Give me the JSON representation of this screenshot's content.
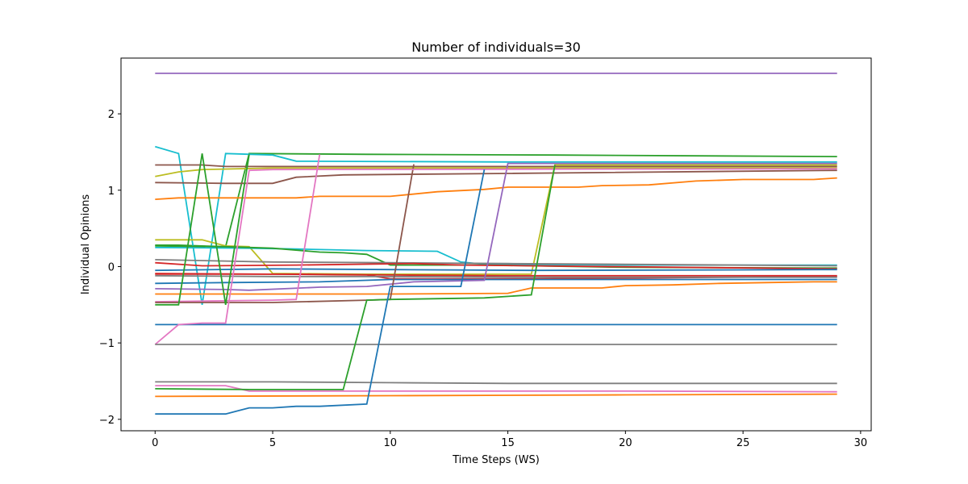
{
  "chart_data": {
    "type": "line",
    "title": "Number of individuals=30",
    "xlabel": "Time Steps (WS)",
    "ylabel": "Individual Opinions",
    "xlim": [
      -1.45,
      30.45
    ],
    "ylim": [
      -2.15,
      2.73
    ],
    "xticks": [
      0,
      5,
      10,
      15,
      20,
      25,
      30
    ],
    "yticks": [
      -2,
      -1,
      0,
      1,
      2
    ],
    "xtick_labels": [
      "0",
      "5",
      "10",
      "15",
      "20",
      "25",
      "30"
    ],
    "ytick_labels": [
      "−2",
      "−1",
      "0",
      "1",
      "2"
    ],
    "grid": false,
    "series": [
      {
        "color": "#9467bd",
        "points": [
          [
            0,
            2.53
          ],
          [
            29,
            2.53
          ]
        ]
      },
      {
        "color": "#2ca02c",
        "points": [
          [
            0,
            0.28
          ],
          [
            1,
            0.28
          ],
          [
            2,
            0.27
          ],
          [
            3,
            0.26
          ],
          [
            4,
            1.48
          ],
          [
            9,
            1.47
          ],
          [
            17,
            1.46
          ],
          [
            29,
            1.44
          ]
        ]
      },
      {
        "color": "#17becf",
        "points": [
          [
            0,
            1.57
          ],
          [
            1,
            1.48
          ],
          [
            2,
            -0.5
          ],
          [
            3,
            1.48
          ],
          [
            5,
            1.46
          ],
          [
            6,
            1.38
          ],
          [
            15,
            1.37
          ],
          [
            29,
            1.37
          ]
        ]
      },
      {
        "color": "#8c564b",
        "points": [
          [
            0,
            1.33
          ],
          [
            2,
            1.33
          ],
          [
            3,
            1.31
          ],
          [
            15,
            1.31
          ],
          [
            29,
            1.31
          ]
        ]
      },
      {
        "color": "#bcbd22",
        "points": [
          [
            0,
            1.18
          ],
          [
            1,
            1.24
          ],
          [
            2,
            1.27
          ],
          [
            5,
            1.29
          ],
          [
            29,
            1.29
          ]
        ]
      },
      {
        "color": "#8c564b",
        "points": [
          [
            0,
            1.1
          ],
          [
            3,
            1.09
          ],
          [
            5,
            1.09
          ],
          [
            6,
            1.17
          ],
          [
            8,
            1.2
          ],
          [
            15,
            1.22
          ],
          [
            29,
            1.26
          ]
        ]
      },
      {
        "color": "#ff7f0e",
        "points": [
          [
            0,
            0.88
          ],
          [
            1,
            0.9
          ],
          [
            6,
            0.9
          ],
          [
            7,
            0.92
          ],
          [
            10,
            0.92
          ],
          [
            12,
            0.98
          ],
          [
            14,
            1.01
          ],
          [
            15,
            1.04
          ],
          [
            18,
            1.04
          ],
          [
            19,
            1.06
          ],
          [
            21,
            1.07
          ],
          [
            23,
            1.12
          ],
          [
            25,
            1.14
          ],
          [
            28,
            1.14
          ],
          [
            29,
            1.16
          ]
        ]
      },
      {
        "color": "#bcbd22",
        "points": [
          [
            0,
            0.35
          ],
          [
            2,
            0.35
          ],
          [
            3,
            0.27
          ],
          [
            4,
            0.26
          ],
          [
            5,
            -0.09
          ],
          [
            9,
            -0.1
          ],
          [
            16,
            -0.1
          ],
          [
            17,
            1.33
          ],
          [
            29,
            1.33
          ]
        ]
      },
      {
        "color": "#17becf",
        "points": [
          [
            0,
            0.25
          ],
          [
            4,
            0.24
          ],
          [
            6,
            0.23
          ],
          [
            9,
            0.21
          ],
          [
            12,
            0.2
          ],
          [
            13,
            0.06
          ],
          [
            14,
            0.03
          ],
          [
            20,
            0.02
          ],
          [
            29,
            0.02
          ]
        ]
      },
      {
        "color": "#2ca02c",
        "points": [
          [
            0,
            0.27
          ],
          [
            3,
            0.26
          ],
          [
            5,
            0.24
          ],
          [
            7,
            0.19
          ],
          [
            8,
            0.18
          ],
          [
            9,
            0.16
          ],
          [
            10,
            0.02
          ],
          [
            14,
            0.02
          ],
          [
            20,
            -0.01
          ],
          [
            29,
            -0.02
          ]
        ]
      },
      {
        "color": "#7f7f7f",
        "points": [
          [
            0,
            0.09
          ],
          [
            5,
            0.06
          ],
          [
            10,
            0.05
          ],
          [
            15,
            0.04
          ],
          [
            20,
            0.03
          ],
          [
            29,
            0.01
          ]
        ]
      },
      {
        "color": "#d62728",
        "points": [
          [
            0,
            0.05
          ],
          [
            2,
            0.01
          ],
          [
            6,
            0.02
          ],
          [
            11,
            0.04
          ],
          [
            13,
            0.02
          ],
          [
            16,
            0.01
          ],
          [
            29,
            -0.03
          ]
        ]
      },
      {
        "color": "#1f77b4",
        "points": [
          [
            0,
            -0.05
          ],
          [
            5,
            -0.03
          ],
          [
            10,
            -0.04
          ],
          [
            16,
            -0.05
          ],
          [
            29,
            -0.04
          ]
        ]
      },
      {
        "color": "#d62728",
        "points": [
          [
            0,
            -0.09
          ],
          [
            5,
            -0.1
          ],
          [
            9,
            -0.11
          ],
          [
            10,
            -0.16
          ],
          [
            16,
            -0.16
          ],
          [
            29,
            -0.13
          ]
        ]
      },
      {
        "color": "#d62728",
        "points": [
          [
            0,
            -0.1
          ],
          [
            6,
            -0.1
          ],
          [
            10,
            -0.11
          ],
          [
            15,
            -0.12
          ],
          [
            29,
            -0.12
          ]
        ]
      },
      {
        "color": "#7f7f7f",
        "points": [
          [
            0,
            -0.12
          ],
          [
            5,
            -0.13
          ],
          [
            10,
            -0.13
          ],
          [
            16,
            -0.14
          ],
          [
            29,
            -0.14
          ]
        ]
      },
      {
        "color": "#1f77b4",
        "points": [
          [
            0,
            -0.22
          ],
          [
            3,
            -0.21
          ],
          [
            7,
            -0.2
          ],
          [
            10,
            -0.17
          ],
          [
            15,
            -0.17
          ],
          [
            29,
            -0.17
          ]
        ]
      },
      {
        "color": "#9467bd",
        "points": [
          [
            0,
            -0.29
          ],
          [
            3,
            -0.3
          ],
          [
            4,
            -0.31
          ],
          [
            7,
            -0.27
          ],
          [
            9,
            -0.26
          ],
          [
            11,
            -0.2
          ],
          [
            14,
            -0.18
          ],
          [
            15,
            1.35
          ],
          [
            29,
            1.35
          ]
        ]
      },
      {
        "color": "#ff7f0e",
        "points": [
          [
            0,
            -0.36
          ],
          [
            5,
            -0.36
          ],
          [
            10,
            -0.36
          ],
          [
            15,
            -0.35
          ],
          [
            16,
            -0.28
          ],
          [
            19,
            -0.28
          ],
          [
            20,
            -0.25
          ],
          [
            22,
            -0.24
          ],
          [
            24,
            -0.22
          ],
          [
            26,
            -0.21
          ],
          [
            28,
            -0.2
          ],
          [
            29,
            -0.2
          ]
        ]
      },
      {
        "color": "#e377c2",
        "points": [
          [
            0,
            -0.46
          ],
          [
            5,
            -0.44
          ],
          [
            6,
            -0.43
          ],
          [
            7,
            1.47
          ]
        ]
      },
      {
        "color": "#8c564b",
        "points": [
          [
            0,
            -0.47
          ],
          [
            5,
            -0.47
          ],
          [
            9,
            -0.44
          ],
          [
            10,
            -0.43
          ],
          [
            11,
            1.34
          ]
        ]
      },
      {
        "color": "#2ca02c",
        "points": [
          [
            0,
            -0.5
          ],
          [
            1,
            -0.5
          ],
          [
            2,
            1.48
          ],
          [
            3,
            -0.5
          ],
          [
            4,
            1.47
          ]
        ]
      },
      {
        "color": "#1f77b4",
        "points": [
          [
            0,
            -0.76
          ],
          [
            29,
            -0.76
          ]
        ]
      },
      {
        "color": "#e377c2",
        "points": [
          [
            0,
            -1.02
          ],
          [
            1,
            -0.76
          ],
          [
            2,
            -0.74
          ],
          [
            3,
            -0.74
          ],
          [
            4,
            1.26
          ],
          [
            5,
            1.27
          ],
          [
            29,
            1.28
          ]
        ]
      },
      {
        "color": "#7f7f7f",
        "points": [
          [
            0,
            -1.02
          ],
          [
            29,
            -1.02
          ]
        ]
      },
      {
        "color": "#7f7f7f",
        "points": [
          [
            0,
            -1.51
          ],
          [
            5,
            -1.51
          ],
          [
            10,
            -1.52
          ],
          [
            15,
            -1.53
          ],
          [
            29,
            -1.53
          ]
        ]
      },
      {
        "color": "#e377c2",
        "points": [
          [
            0,
            -1.56
          ],
          [
            3,
            -1.56
          ],
          [
            4,
            -1.63
          ],
          [
            10,
            -1.63
          ],
          [
            20,
            -1.63
          ],
          [
            29,
            -1.64
          ]
        ]
      },
      {
        "color": "#2ca02c",
        "points": [
          [
            0,
            -1.6
          ],
          [
            4,
            -1.61
          ],
          [
            8,
            -1.61
          ],
          [
            9,
            -0.44
          ],
          [
            10,
            -0.43
          ],
          [
            14,
            -0.41
          ],
          [
            16,
            -0.37
          ],
          [
            17,
            1.33
          ]
        ]
      },
      {
        "color": "#ff7f0e",
        "points": [
          [
            0,
            -1.7
          ],
          [
            10,
            -1.69
          ],
          [
            20,
            -1.68
          ],
          [
            29,
            -1.67
          ]
        ]
      },
      {
        "color": "#1f77b4",
        "points": [
          [
            0,
            -1.93
          ],
          [
            3,
            -1.93
          ],
          [
            4,
            -1.85
          ],
          [
            5,
            -1.85
          ],
          [
            6,
            -1.83
          ],
          [
            7,
            -1.83
          ],
          [
            9,
            -1.8
          ],
          [
            10,
            -0.26
          ],
          [
            13,
            -0.26
          ],
          [
            14,
            1.27
          ]
        ]
      }
    ]
  }
}
